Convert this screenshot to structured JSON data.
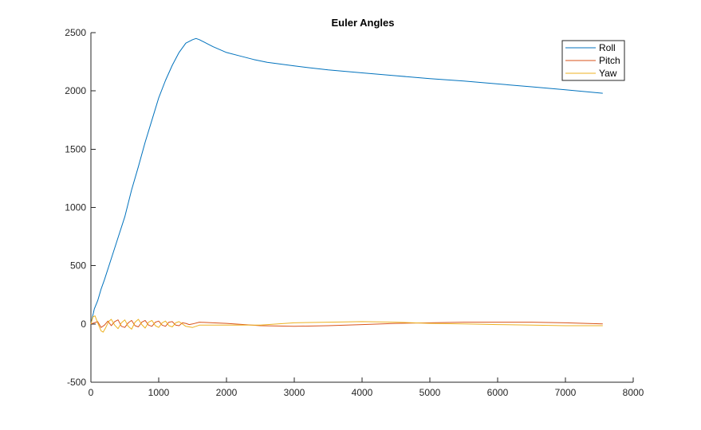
{
  "chart_data": {
    "type": "line",
    "title": "Euler Angles",
    "xlabel": "",
    "ylabel": "",
    "xlim": [
      0,
      8000
    ],
    "ylim": [
      -500,
      2500
    ],
    "xticks": [
      0,
      1000,
      2000,
      3000,
      4000,
      5000,
      6000,
      7000,
      8000
    ],
    "yticks": [
      -500,
      0,
      500,
      1000,
      1500,
      2000,
      2500
    ],
    "grid": false,
    "legend_position": "top-right",
    "series": [
      {
        "name": "Roll",
        "color": "#0072BD",
        "x": [
          0,
          50,
          100,
          150,
          200,
          300,
          400,
          500,
          600,
          700,
          800,
          900,
          1000,
          1100,
          1200,
          1300,
          1400,
          1500,
          1550,
          1600,
          1700,
          1800,
          2000,
          2200,
          2400,
          2600,
          2800,
          3000,
          3200,
          3500,
          4000,
          4500,
          5000,
          5500,
          6000,
          6500,
          7000,
          7550
        ],
        "values": [
          0,
          130,
          200,
          300,
          380,
          560,
          740,
          920,
          1150,
          1350,
          1560,
          1750,
          1940,
          2090,
          2220,
          2330,
          2410,
          2440,
          2450,
          2440,
          2410,
          2380,
          2330,
          2300,
          2270,
          2245,
          2230,
          2215,
          2200,
          2180,
          2155,
          2130,
          2105,
          2085,
          2060,
          2035,
          2010,
          1980
        ]
      },
      {
        "name": "Pitch",
        "color": "#D95319",
        "x": [
          0,
          50,
          100,
          150,
          200,
          250,
          300,
          350,
          400,
          450,
          500,
          550,
          600,
          650,
          700,
          750,
          800,
          850,
          900,
          950,
          1000,
          1050,
          1100,
          1150,
          1200,
          1250,
          1300,
          1350,
          1400,
          1450,
          1500,
          1600,
          1800,
          2000,
          2500,
          3000,
          3500,
          4000,
          4500,
          5000,
          5500,
          6000,
          6500,
          7000,
          7550
        ],
        "values": [
          0,
          10,
          20,
          -30,
          -10,
          25,
          -15,
          20,
          35,
          -20,
          -30,
          10,
          30,
          -15,
          -25,
          15,
          30,
          -10,
          -20,
          15,
          25,
          -10,
          -20,
          15,
          20,
          -10,
          -15,
          10,
          5,
          -5,
          0,
          15,
          10,
          5,
          -15,
          -20,
          -15,
          -5,
          5,
          10,
          15,
          15,
          15,
          10,
          0
        ]
      },
      {
        "name": "Yaw",
        "color": "#EDB120",
        "x": [
          0,
          30,
          60,
          100,
          150,
          180,
          220,
          260,
          300,
          350,
          400,
          450,
          500,
          550,
          600,
          650,
          700,
          750,
          800,
          850,
          900,
          950,
          1000,
          1050,
          1100,
          1150,
          1200,
          1250,
          1300,
          1400,
          1500,
          1600,
          2000,
          2500,
          3000,
          3500,
          4000,
          4500,
          5000,
          5500,
          6000,
          6500,
          7000,
          7550
        ],
        "values": [
          0,
          60,
          70,
          10,
          -60,
          -70,
          -30,
          20,
          40,
          -10,
          -40,
          10,
          35,
          -20,
          -45,
          15,
          40,
          -5,
          -35,
          15,
          30,
          -15,
          -30,
          10,
          25,
          -15,
          -25,
          10,
          20,
          -20,
          -30,
          -10,
          -10,
          -10,
          10,
          15,
          20,
          15,
          5,
          0,
          -5,
          -10,
          -15,
          -15
        ]
      }
    ]
  }
}
